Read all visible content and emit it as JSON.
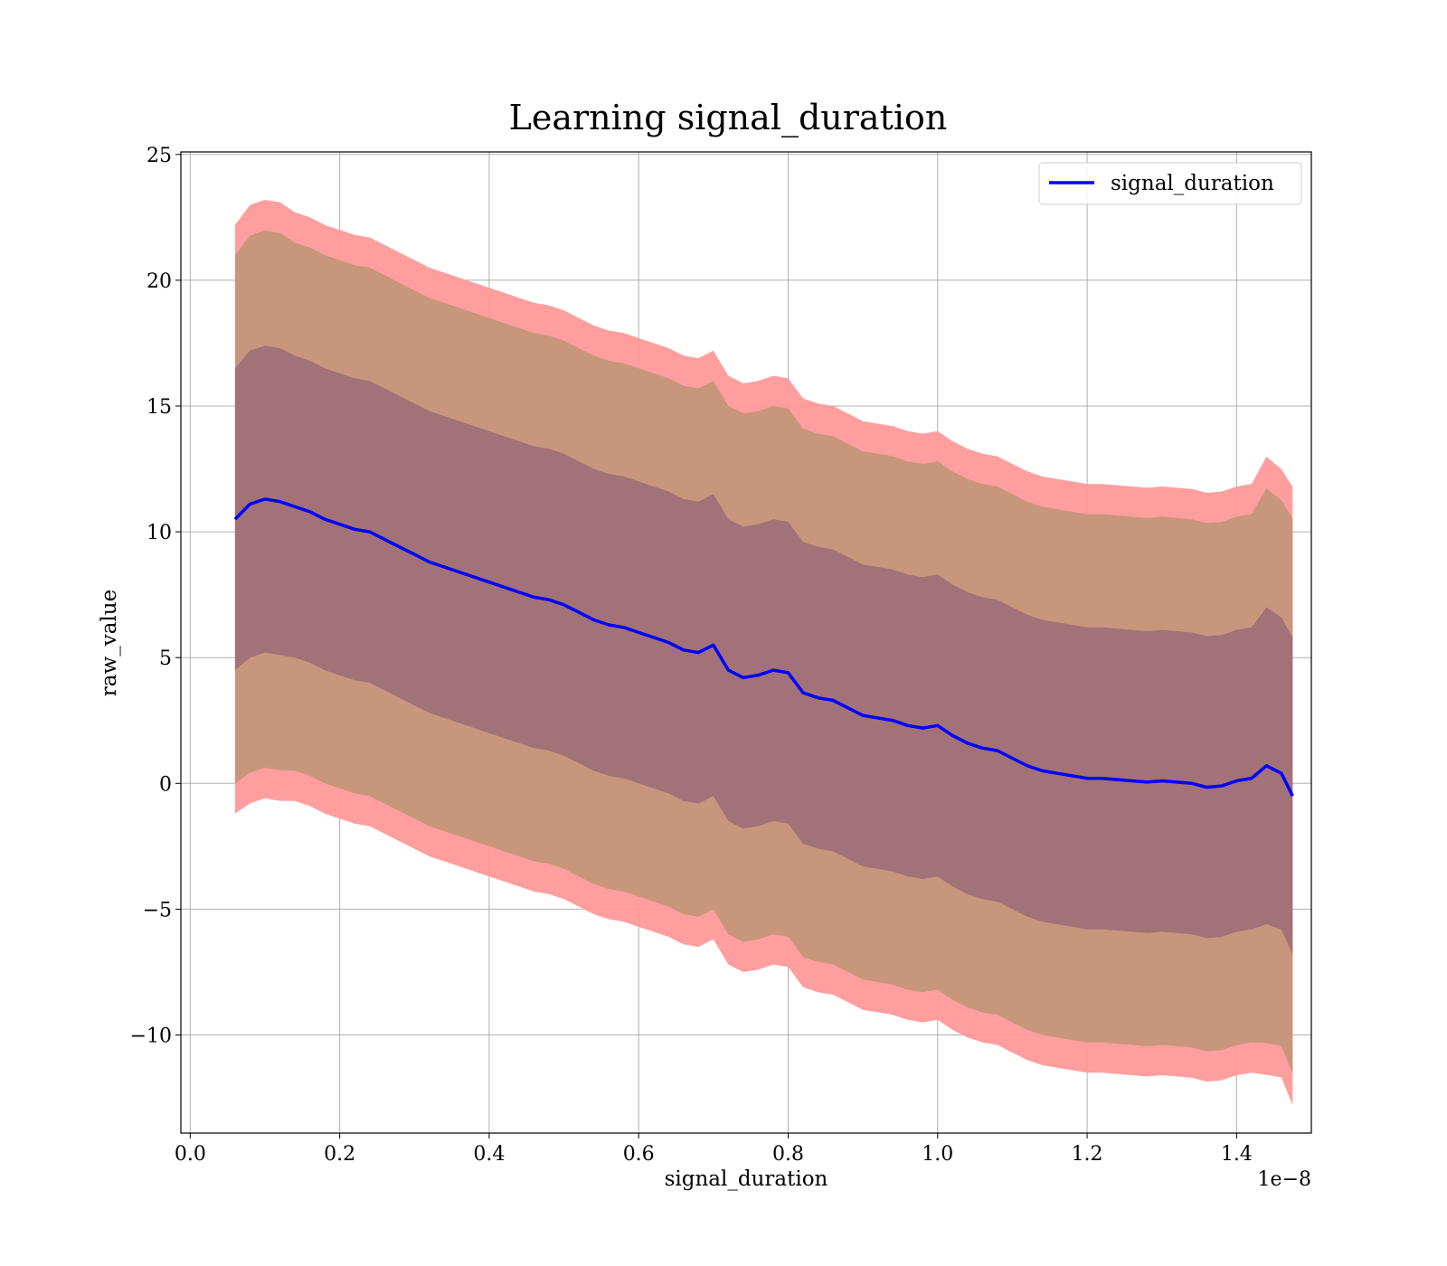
{
  "chart_data": {
    "type": "line",
    "title": "Learning signal_duration",
    "xlabel": "signal_duration",
    "ylabel": "raw_value",
    "x_offset_label": "1e−8",
    "xlim": [
      -0.0125,
      1.5
    ],
    "ylim": [
      -13.9,
      25.1
    ],
    "xticks": [
      0.0,
      0.2,
      0.4,
      0.6,
      0.8,
      1.0,
      1.2,
      1.4
    ],
    "xtick_labels": [
      "0.0",
      "0.2",
      "0.4",
      "0.6",
      "0.8",
      "1.0",
      "1.2",
      "1.4"
    ],
    "yticks": [
      -10,
      -5,
      0,
      5,
      10,
      15,
      20,
      25
    ],
    "ytick_labels": [
      "−10",
      "−5",
      "0",
      "5",
      "10",
      "15",
      "20",
      "25"
    ],
    "grid": true,
    "legend_position": "upper right",
    "colors": {
      "line": "#0000ff",
      "band_outer": "#ff9999",
      "band_mid": "#c4967a",
      "band_inner": "#a07078"
    },
    "series": [
      {
        "name": "signal_duration",
        "x": [
          0.06,
          0.08,
          0.1,
          0.12,
          0.14,
          0.16,
          0.18,
          0.2,
          0.22,
          0.24,
          0.26,
          0.28,
          0.3,
          0.32,
          0.34,
          0.36,
          0.38,
          0.4,
          0.42,
          0.44,
          0.46,
          0.48,
          0.5,
          0.52,
          0.54,
          0.56,
          0.58,
          0.6,
          0.62,
          0.64,
          0.66,
          0.68,
          0.7,
          0.72,
          0.74,
          0.76,
          0.78,
          0.8,
          0.82,
          0.84,
          0.86,
          0.88,
          0.9,
          0.92,
          0.94,
          0.96,
          0.98,
          1.0,
          1.02,
          1.04,
          1.06,
          1.08,
          1.1,
          1.12,
          1.14,
          1.16,
          1.18,
          1.2,
          1.22,
          1.24,
          1.26,
          1.28,
          1.3,
          1.32,
          1.34,
          1.36,
          1.38,
          1.4,
          1.42,
          1.44,
          1.46,
          1.475
        ],
        "y": [
          10.5,
          11.1,
          11.3,
          11.2,
          11.0,
          10.8,
          10.5,
          10.3,
          10.1,
          10.0,
          9.7,
          9.4,
          9.1,
          8.8,
          8.6,
          8.4,
          8.2,
          8.0,
          7.8,
          7.6,
          7.4,
          7.3,
          7.1,
          6.8,
          6.5,
          6.3,
          6.2,
          6.0,
          5.8,
          5.6,
          5.3,
          5.2,
          5.5,
          4.5,
          4.2,
          4.3,
          4.5,
          4.4,
          3.6,
          3.4,
          3.3,
          3.0,
          2.7,
          2.6,
          2.5,
          2.3,
          2.2,
          2.3,
          1.9,
          1.6,
          1.4,
          1.3,
          1.0,
          0.7,
          0.5,
          0.4,
          0.3,
          0.2,
          0.2,
          0.15,
          0.1,
          0.05,
          0.1,
          0.05,
          0.0,
          -0.15,
          -0.1,
          0.1,
          0.2,
          0.7,
          0.4,
          -0.5
        ],
        "std": [
          6.0,
          6.1,
          6.1,
          6.1,
          6.0,
          6.0,
          6.0,
          6.0,
          6.0,
          6.0,
          6.0,
          6.0,
          6.0,
          6.0,
          6.0,
          6.0,
          6.0,
          6.0,
          6.0,
          6.0,
          6.0,
          6.0,
          6.0,
          6.0,
          6.0,
          6.0,
          6.0,
          6.0,
          6.0,
          6.0,
          6.0,
          6.0,
          6.0,
          6.0,
          6.0,
          6.0,
          6.0,
          6.0,
          6.0,
          6.0,
          6.0,
          6.0,
          6.0,
          6.0,
          6.0,
          6.0,
          6.0,
          6.0,
          6.0,
          6.0,
          6.0,
          6.0,
          6.0,
          6.0,
          6.0,
          6.0,
          6.0,
          6.0,
          6.0,
          6.0,
          6.0,
          6.0,
          6.0,
          6.0,
          6.0,
          6.0,
          6.0,
          6.0,
          6.0,
          6.3,
          6.2,
          6.3
        ],
        "band_multipliers": [
          1,
          1.75,
          1.95
        ]
      }
    ]
  }
}
